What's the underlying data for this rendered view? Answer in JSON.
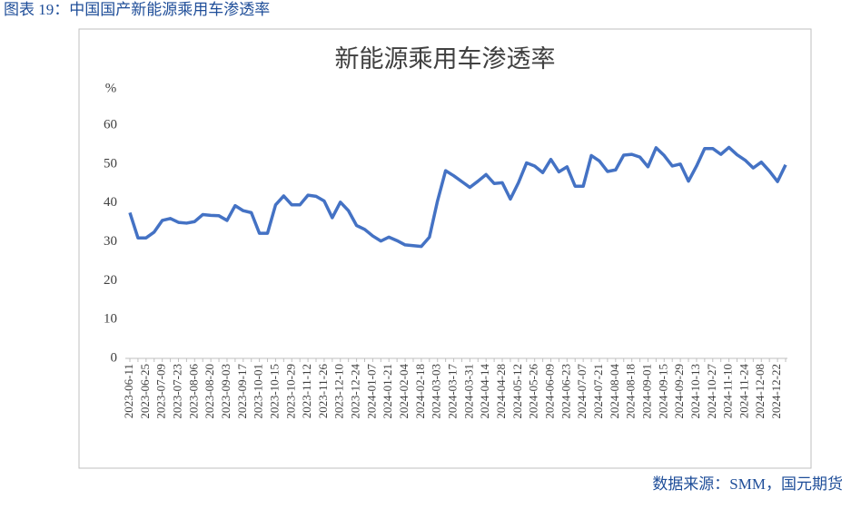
{
  "caption": "图表 19：中国国产新能源乘用车渗透率",
  "source": "数据来源：SMM，国元期货",
  "chart_data": {
    "type": "line",
    "title": "新能源乘用车渗透率",
    "y_unit_label": "%",
    "categories": [
      "2023-06-11",
      null,
      "2023-06-25",
      null,
      "2023-07-09",
      null,
      "2023-07-23",
      null,
      "2023-08-06",
      null,
      "2023-08-20",
      null,
      "2023-09-03",
      null,
      "2023-09-17",
      null,
      "2023-10-01",
      null,
      "2023-10-15",
      null,
      "2023-10-29",
      null,
      "2023-11-12",
      null,
      "2023-11-26",
      null,
      "2023-12-10",
      null,
      "2023-12-24",
      null,
      "2024-01-07",
      null,
      "2024-01-21",
      null,
      "2024-02-04",
      null,
      "2024-02-18",
      null,
      "2024-03-03",
      null,
      "2024-03-17",
      null,
      "2024-03-31",
      null,
      "2024-04-14",
      null,
      "2024-04-28",
      null,
      "2024-05-12",
      null,
      "2024-05-26",
      null,
      "2024-06-09",
      null,
      "2024-06-23",
      null,
      "2024-07-07",
      null,
      "2024-07-21",
      null,
      "2024-08-04",
      null,
      "2024-08-18",
      null,
      "2024-09-01",
      null,
      "2024-09-15",
      null,
      "2024-09-29",
      null,
      "2024-10-13",
      null,
      "2024-10-27",
      null,
      "2024-11-10",
      null,
      "2024-11-24",
      null,
      "2024-12-08",
      null,
      "2024-12-22",
      null
    ],
    "values": [
      37.5,
      31,
      31,
      32.5,
      35.5,
      36,
      35,
      34.8,
      35.2,
      37,
      36.8,
      36.7,
      35.5,
      39.3,
      38,
      37.5,
      32.2,
      32.2,
      39.5,
      41.8,
      39.5,
      39.5,
      42,
      41.7,
      40.5,
      36.2,
      40.2,
      38,
      34.2,
      33.2,
      31.5,
      30.2,
      31.2,
      30.3,
      29.2,
      29,
      28.8,
      31.2,
      40.5,
      48.3,
      47,
      45.5,
      44,
      45.6,
      47.3,
      45,
      45.2,
      41,
      45.2,
      50.3,
      49.5,
      47.8,
      51.2,
      48,
      49.3,
      44.3,
      44.3,
      52.2,
      50.8,
      48.1,
      48.5,
      52.3,
      52.5,
      51.8,
      49.3,
      54.2,
      52.2,
      49.5,
      50,
      45.6,
      49.5,
      54,
      54,
      52.5,
      54.3,
      52.4,
      51,
      49,
      50.5,
      48.2,
      45.5,
      49.8
    ],
    "color": "#4472c4",
    "ylim": [
      0,
      60
    ],
    "yticks": [
      0,
      10,
      20,
      30,
      40,
      50,
      60
    ],
    "grid": false
  }
}
